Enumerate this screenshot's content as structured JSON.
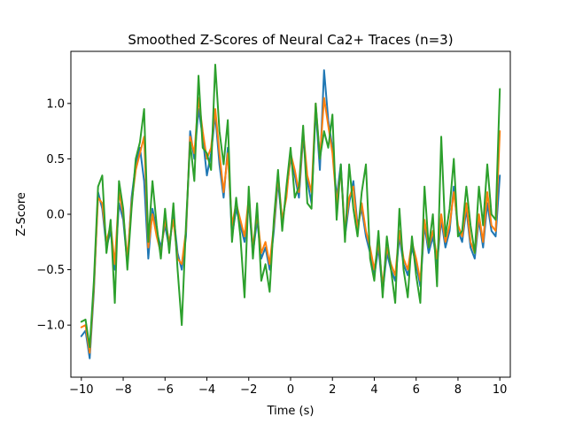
{
  "chart_data": {
    "type": "line",
    "title": "Smoothed Z-Scores of Neural Ca2+ Traces (n=3)",
    "xlabel": "Time (s)",
    "ylabel": "Z-Score",
    "xlim": [
      -10.5,
      10.5
    ],
    "ylim": [
      -1.47,
      1.47
    ],
    "xticks": [
      -10,
      -8,
      -6,
      -4,
      -2,
      0,
      2,
      4,
      6,
      8,
      10
    ],
    "xtick_labels": [
      "−10",
      "−8",
      "−6",
      "−4",
      "−2",
      "0",
      "2",
      "4",
      "6",
      "8",
      "10"
    ],
    "yticks": [
      -1.0,
      -0.5,
      0.0,
      0.5,
      1.0
    ],
    "ytick_labels": [
      "−1.0",
      "−0.5",
      "0.0",
      "0.5",
      "1.0"
    ],
    "grid": false,
    "legend": "none",
    "colors": [
      "#1f77b4",
      "#ff7f0e",
      "#2ca02c"
    ],
    "series": [
      {
        "x": [
          -10.0,
          -9.8,
          -9.6,
          -9.4,
          -9.2,
          -9.0,
          -8.8,
          -8.6,
          -8.4,
          -8.2,
          -8.0,
          -7.8,
          -7.6,
          -7.4,
          -7.2,
          -7.0,
          -6.8,
          -6.6,
          -6.4,
          -6.2,
          -6.0,
          -5.8,
          -5.6,
          -5.4,
          -5.2,
          -5.0,
          -4.8,
          -4.6,
          -4.4,
          -4.2,
          -4.0,
          -3.8,
          -3.6,
          -3.4,
          -3.2,
          -3.0,
          -2.8,
          -2.6,
          -2.4,
          -2.2,
          -2.0,
          -1.8,
          -1.6,
          -1.4,
          -1.2,
          -1.0,
          -0.8,
          -0.6,
          -0.4,
          -0.2,
          0.0,
          0.2,
          0.4,
          0.6,
          0.8,
          1.0,
          1.2,
          1.4,
          1.6,
          1.8,
          2.0,
          2.2,
          2.4,
          2.6,
          2.8,
          3.0,
          3.2,
          3.4,
          3.6,
          3.8,
          4.0,
          4.2,
          4.4,
          4.6,
          4.8,
          5.0,
          5.2,
          5.4,
          5.6,
          5.8,
          6.0,
          6.2,
          6.4,
          6.6,
          6.8,
          7.0,
          7.2,
          7.4,
          7.6,
          7.8,
          8.0,
          8.2,
          8.4,
          8.6,
          8.8,
          9.0,
          9.2,
          9.4,
          9.6,
          9.8,
          10.0
        ],
        "y": [
          -1.1,
          -1.05,
          -1.3,
          -0.7,
          0.2,
          0.05,
          -0.3,
          -0.15,
          -0.5,
          0.1,
          -0.05,
          -0.45,
          0.15,
          0.45,
          0.6,
          0.3,
          -0.4,
          0.05,
          -0.15,
          -0.3,
          -0.1,
          -0.3,
          0.0,
          -0.35,
          -0.5,
          -0.2,
          0.75,
          0.5,
          0.95,
          0.7,
          0.35,
          0.55,
          0.9,
          0.45,
          0.15,
          0.6,
          -0.2,
          0.05,
          -0.1,
          -0.25,
          0.1,
          -0.35,
          -0.05,
          -0.4,
          -0.3,
          -0.5,
          -0.15,
          0.3,
          -0.1,
          0.2,
          0.5,
          0.35,
          0.15,
          0.7,
          0.3,
          0.1,
          0.95,
          0.4,
          1.3,
          0.85,
          0.6,
          0.15,
          0.45,
          -0.2,
          0.1,
          0.3,
          -0.1,
          0.05,
          -0.2,
          -0.35,
          -0.55,
          -0.3,
          -0.7,
          -0.35,
          -0.5,
          -0.6,
          -0.2,
          -0.45,
          -0.55,
          -0.3,
          -0.45,
          -0.65,
          -0.1,
          -0.35,
          -0.2,
          -0.45,
          -0.05,
          -0.3,
          -0.15,
          0.25,
          -0.15,
          -0.25,
          0.05,
          -0.3,
          -0.4,
          -0.05,
          -0.3,
          0.1,
          -0.15,
          -0.2,
          0.35
        ]
      },
      {
        "x": [
          -10.0,
          -9.8,
          -9.6,
          -9.4,
          -9.2,
          -9.0,
          -8.8,
          -8.6,
          -8.4,
          -8.2,
          -8.0,
          -7.8,
          -7.6,
          -7.4,
          -7.2,
          -7.0,
          -6.8,
          -6.6,
          -6.4,
          -6.2,
          -6.0,
          -5.8,
          -5.6,
          -5.4,
          -5.2,
          -5.0,
          -4.8,
          -4.6,
          -4.4,
          -4.2,
          -4.0,
          -3.8,
          -3.6,
          -3.4,
          -3.2,
          -3.0,
          -2.8,
          -2.6,
          -2.4,
          -2.2,
          -2.0,
          -1.8,
          -1.6,
          -1.4,
          -1.2,
          -1.0,
          -0.8,
          -0.6,
          -0.4,
          -0.2,
          0.0,
          0.2,
          0.4,
          0.6,
          0.8,
          1.0,
          1.2,
          1.4,
          1.6,
          1.8,
          2.0,
          2.2,
          2.4,
          2.6,
          2.8,
          3.0,
          3.2,
          3.4,
          3.6,
          3.8,
          4.0,
          4.2,
          4.4,
          4.6,
          4.8,
          5.0,
          5.2,
          5.4,
          5.6,
          5.8,
          6.0,
          6.2,
          6.4,
          6.6,
          6.8,
          7.0,
          7.2,
          7.4,
          7.6,
          7.8,
          8.0,
          8.2,
          8.4,
          8.6,
          8.8,
          9.0,
          9.2,
          9.4,
          9.6,
          9.8,
          10.0
        ],
        "y": [
          -1.02,
          -1.0,
          -1.25,
          -0.65,
          0.15,
          0.1,
          -0.25,
          -0.1,
          -0.45,
          0.2,
          0.0,
          -0.4,
          0.1,
          0.4,
          0.55,
          0.7,
          -0.3,
          0.0,
          -0.2,
          -0.35,
          -0.05,
          -0.25,
          -0.05,
          -0.4,
          -0.45,
          -0.15,
          0.7,
          0.55,
          1.05,
          0.75,
          0.5,
          0.6,
          0.95,
          0.55,
          0.2,
          0.55,
          -0.1,
          0.1,
          -0.05,
          -0.2,
          0.15,
          -0.3,
          0.0,
          -0.35,
          -0.25,
          -0.45,
          -0.1,
          0.35,
          -0.05,
          0.15,
          0.55,
          0.4,
          0.2,
          0.75,
          0.35,
          0.2,
          1.0,
          0.5,
          1.05,
          0.8,
          0.55,
          0.1,
          0.4,
          -0.15,
          0.15,
          0.25,
          -0.15,
          0.1,
          -0.15,
          -0.3,
          -0.5,
          -0.25,
          -0.65,
          -0.3,
          -0.45,
          -0.55,
          -0.15,
          -0.4,
          -0.5,
          -0.25,
          -0.4,
          -0.6,
          -0.05,
          -0.3,
          -0.15,
          -0.4,
          0.0,
          -0.25,
          -0.1,
          0.2,
          -0.1,
          -0.2,
          0.1,
          -0.25,
          -0.35,
          0.0,
          -0.25,
          0.2,
          -0.1,
          -0.15,
          0.75
        ]
      },
      {
        "x": [
          -10.0,
          -9.8,
          -9.6,
          -9.4,
          -9.2,
          -9.0,
          -8.8,
          -8.6,
          -8.4,
          -8.2,
          -8.0,
          -7.8,
          -7.6,
          -7.4,
          -7.2,
          -7.0,
          -6.8,
          -6.6,
          -6.4,
          -6.2,
          -6.0,
          -5.8,
          -5.6,
          -5.4,
          -5.2,
          -5.0,
          -4.8,
          -4.6,
          -4.4,
          -4.2,
          -4.0,
          -3.8,
          -3.6,
          -3.4,
          -3.2,
          -3.0,
          -2.8,
          -2.6,
          -2.4,
          -2.2,
          -2.0,
          -1.8,
          -1.6,
          -1.4,
          -1.2,
          -1.0,
          -0.8,
          -0.6,
          -0.4,
          -0.2,
          0.0,
          0.2,
          0.4,
          0.6,
          0.8,
          1.0,
          1.2,
          1.4,
          1.6,
          1.8,
          2.0,
          2.2,
          2.4,
          2.6,
          2.8,
          3.0,
          3.2,
          3.4,
          3.6,
          3.8,
          4.0,
          4.2,
          4.4,
          4.6,
          4.8,
          5.0,
          5.2,
          5.4,
          5.6,
          5.8,
          6.0,
          6.2,
          6.4,
          6.6,
          6.8,
          7.0,
          7.2,
          7.4,
          7.6,
          7.8,
          8.0,
          8.2,
          8.4,
          8.6,
          8.8,
          9.0,
          9.2,
          9.4,
          9.6,
          9.8,
          10.0
        ],
        "y": [
          -0.97,
          -0.95,
          -1.2,
          -0.6,
          0.25,
          0.35,
          -0.35,
          -0.05,
          -0.8,
          0.3,
          0.05,
          -0.5,
          0.05,
          0.5,
          0.65,
          0.95,
          -0.25,
          0.3,
          -0.1,
          -0.4,
          0.05,
          -0.35,
          0.1,
          -0.5,
          -1.0,
          -0.1,
          0.65,
          0.3,
          1.25,
          0.6,
          0.55,
          0.4,
          1.35,
          0.75,
          0.45,
          0.85,
          -0.25,
          0.15,
          -0.2,
          -0.75,
          0.25,
          -0.4,
          0.1,
          -0.6,
          -0.45,
          -0.7,
          -0.05,
          0.4,
          -0.15,
          0.25,
          0.6,
          0.15,
          0.25,
          0.8,
          0.1,
          0.05,
          1.0,
          0.5,
          0.75,
          0.6,
          0.9,
          -0.05,
          0.45,
          -0.25,
          0.45,
          0.05,
          -0.2,
          0.2,
          0.45,
          -0.4,
          -0.6,
          -0.15,
          -0.75,
          -0.2,
          -0.5,
          -0.8,
          0.05,
          -0.5,
          -0.75,
          -0.2,
          -0.55,
          -0.8,
          0.25,
          -0.3,
          0.0,
          -0.65,
          0.7,
          -0.2,
          0.05,
          0.5,
          -0.2,
          -0.15,
          0.25,
          -0.1,
          -0.35,
          0.25,
          -0.1,
          0.45,
          0.0,
          -0.05,
          1.13
        ]
      }
    ]
  }
}
